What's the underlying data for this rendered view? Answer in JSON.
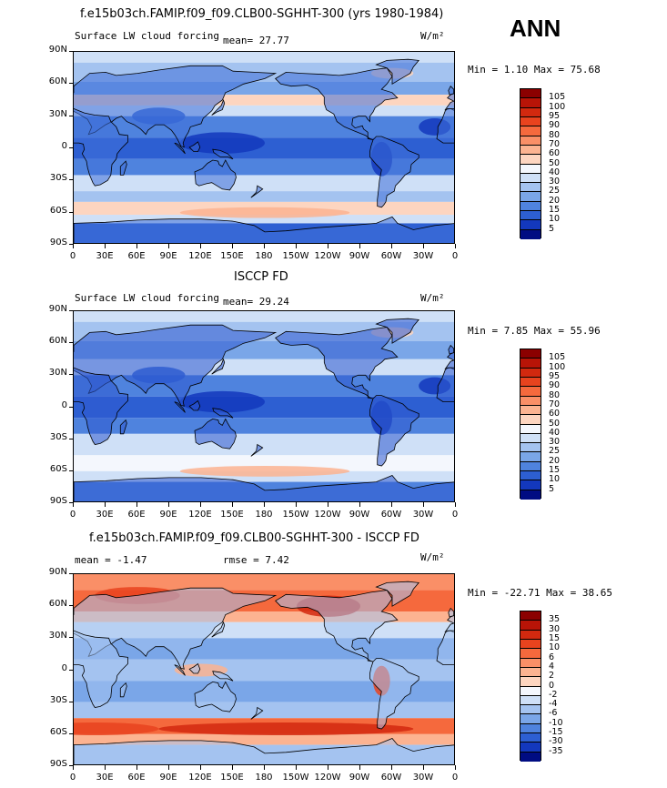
{
  "season": "ANN",
  "colors": {
    "pos": [
      "#fde2d2",
      "#fcc1a5",
      "#fba37f",
      "#f9855c",
      "#f4673a",
      "#e84d23",
      "#d53413",
      "#bb1e0a",
      "#9b0c05",
      "#7e0000"
    ],
    "neg": [
      "#dce8f8",
      "#c6dbf6",
      "#a5c5f1",
      "#86b0ec",
      "#6a9ae6",
      "#4f82df",
      "#3868d7",
      "#2350cb",
      "#1438b6",
      "#0924a0",
      "#000b80"
    ]
  },
  "panels": [
    {
      "title": "f.e15b03ch.FAMIP.f09_f09.CLB00-SGHHT-300 (yrs 1980-1984)",
      "left_label": "Surface LW cloud forcing",
      "mean_text": "mean=   27.77",
      "units": "W/m²",
      "minmax": "Min =    1.10 Max =  75.68",
      "cbar_labels": [
        "105",
        "100",
        "95",
        "90",
        "80",
        "70",
        "60",
        "50",
        "40",
        "30",
        "25",
        "20",
        "15",
        "10",
        "5"
      ],
      "cbar_colors": [
        "#8b0000",
        "#b81407",
        "#d2290f",
        "#e8431e",
        "#f5693d",
        "#fa8f67",
        "#fcb391",
        "#fdd5c0",
        "#f4f7fd",
        "#cfe0f7",
        "#a4c3f0",
        "#7aa6e8",
        "#4f83de",
        "#2d5fd2",
        "#1338bd",
        "#000c82"
      ],
      "lat_labels": [
        "90N",
        "60N",
        "30N",
        "0",
        "30S",
        "60S",
        "90S"
      ],
      "lon_labels": [
        "0",
        "30E",
        "60E",
        "90E",
        "120E",
        "150E",
        "180",
        "150W",
        "120W",
        "90W",
        "60W",
        "30W",
        "0"
      ]
    },
    {
      "title": "ISCCP FD",
      "left_label": "Surface LW cloud forcing",
      "mean_text": "mean=   29.24",
      "units": "W/m²",
      "minmax": "Min =    7.85 Max =  55.96",
      "cbar_labels": [
        "105",
        "100",
        "95",
        "90",
        "80",
        "70",
        "60",
        "50",
        "40",
        "30",
        "25",
        "20",
        "15",
        "10",
        "5"
      ],
      "cbar_colors": [
        "#8b0000",
        "#b81407",
        "#d2290f",
        "#e8431e",
        "#f5693d",
        "#fa8f67",
        "#fcb391",
        "#fdd5c0",
        "#f4f7fd",
        "#cfe0f7",
        "#a4c3f0",
        "#7aa6e8",
        "#4f83de",
        "#2d5fd2",
        "#1338bd",
        "#000c82"
      ],
      "lat_labels": [
        "90N",
        "60N",
        "30N",
        "0",
        "30S",
        "60S",
        "90S"
      ],
      "lon_labels": [
        "0",
        "30E",
        "60E",
        "90E",
        "120E",
        "150E",
        "180",
        "150W",
        "120W",
        "90W",
        "60W",
        "30W",
        "0"
      ]
    },
    {
      "title": "f.e15b03ch.FAMIP.f09_f09.CLB00-SGHHT-300 - ISCCP FD",
      "left_label": "mean =   -1.47",
      "mean_text": "rmse =    7.42",
      "units": "W/m²",
      "minmax": "Min = -22.71 Max =  38.65",
      "cbar_labels": [
        "35",
        "30",
        "15",
        "10",
        "6",
        "4",
        "2",
        "0",
        "-2",
        "-4",
        "-6",
        "-10",
        "-15",
        "-30",
        "-35"
      ],
      "cbar_colors": [
        "#8b0000",
        "#b81407",
        "#d2290f",
        "#e8431e",
        "#f5693d",
        "#fa8f67",
        "#fcb391",
        "#fdd5c0",
        "#f4f7fd",
        "#cfe0f7",
        "#a4c3f0",
        "#7aa6e8",
        "#4f83de",
        "#2d5fd2",
        "#1338bd",
        "#000c82"
      ],
      "lat_labels": [
        "90N",
        "60N",
        "30N",
        "0",
        "30S",
        "60S",
        "90S"
      ],
      "lon_labels": [
        "0",
        "30E",
        "60E",
        "90E",
        "120E",
        "150E",
        "180",
        "150W",
        "120W",
        "90W",
        "60W",
        "30W",
        "0"
      ]
    }
  ]
}
